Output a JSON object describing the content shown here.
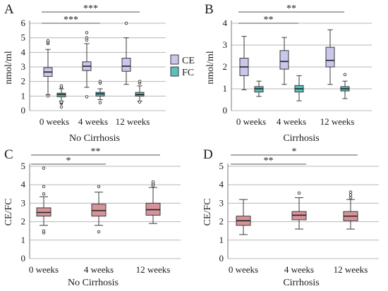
{
  "colors": {
    "ce": "#c9c7ec",
    "fc": "#58c1bd",
    "ratio": "#d6949a",
    "box_stroke": "#3a3a3a",
    "grid": "#b7b7b7",
    "axis": "#7a7a7a",
    "sig_line": "#555555"
  },
  "legend": {
    "ce_label": "CE",
    "fc_label": "FC"
  },
  "chart_data": [
    {
      "panel": "A",
      "type": "box",
      "xlabel": "No Cirrhosis",
      "ylabel": "nmol/ml",
      "ylim": [
        0,
        6
      ],
      "yticks": [
        0,
        1,
        2,
        3,
        4,
        5,
        6
      ],
      "categories": [
        "0 weeks",
        "4 weeks",
        "12 weeks"
      ],
      "series": [
        {
          "name": "CE",
          "color": "ce",
          "boxes": [
            {
              "min": 1.1,
              "q1": 2.35,
              "median": 2.65,
              "q3": 2.95,
              "max": 4.2,
              "outliers": [
                1.0,
                4.6,
                4.7,
                4.8
              ]
            },
            {
              "min": 1.6,
              "q1": 2.75,
              "median": 3.05,
              "q3": 3.35,
              "max": 4.6,
              "outliers": [
                0.95,
                4.85,
                5.0,
                5.35
              ]
            },
            {
              "min": 1.8,
              "q1": 2.7,
              "median": 3.05,
              "q3": 3.6,
              "max": 5.0,
              "outliers": [
                6.0
              ]
            }
          ]
        },
        {
          "name": "FC",
          "color": "fc",
          "boxes": [
            {
              "min": 0.65,
              "q1": 0.95,
              "median": 1.1,
              "q3": 1.2,
              "max": 1.5,
              "outliers": [
                0.25,
                0.5,
                0.55,
                0.6,
                1.6,
                1.7
              ]
            },
            {
              "min": 0.75,
              "q1": 1.0,
              "median": 1.15,
              "q3": 1.25,
              "max": 1.5,
              "outliers": [
                0.55,
                1.9,
                2.0
              ]
            },
            {
              "min": 0.65,
              "q1": 1.0,
              "median": 1.1,
              "q3": 1.25,
              "max": 1.7,
              "outliers": [
                0.6,
                1.9,
                2.0
              ]
            }
          ]
        }
      ],
      "significance": [
        {
          "from": 0,
          "to": 1,
          "label": "***"
        },
        {
          "from": 0,
          "to": 2,
          "label": "***"
        }
      ]
    },
    {
      "panel": "B",
      "type": "box",
      "xlabel": "Cirrhosis",
      "ylabel": "nmol/ml",
      "ylim": [
        0,
        4
      ],
      "yticks": [
        0,
        1,
        2,
        3,
        4
      ],
      "categories": [
        "0 weeks",
        "4 weeks",
        "12 weeks"
      ],
      "series": [
        {
          "name": "CE",
          "color": "ce",
          "boxes": [
            {
              "min": 0.95,
              "q1": 1.6,
              "median": 2.0,
              "q3": 2.4,
              "max": 3.4,
              "outliers": []
            },
            {
              "min": 1.2,
              "q1": 1.9,
              "median": 2.25,
              "q3": 2.75,
              "max": 3.35,
              "outliers": []
            },
            {
              "min": 1.2,
              "q1": 2.0,
              "median": 2.3,
              "q3": 2.9,
              "max": 3.7,
              "outliers": []
            }
          ]
        },
        {
          "name": "FC",
          "color": "fc",
          "boxes": [
            {
              "min": 0.65,
              "q1": 0.85,
              "median": 1.0,
              "q3": 1.1,
              "max": 1.35,
              "outliers": []
            },
            {
              "min": 0.45,
              "q1": 0.85,
              "median": 1.0,
              "q3": 1.15,
              "max": 1.6,
              "outliers": []
            },
            {
              "min": 0.55,
              "q1": 0.9,
              "median": 1.0,
              "q3": 1.1,
              "max": 1.35,
              "outliers": [
                1.65
              ]
            }
          ]
        }
      ],
      "significance": [
        {
          "from": 0,
          "to": 1,
          "label": "**"
        },
        {
          "from": 0,
          "to": 2,
          "label": "**"
        }
      ]
    },
    {
      "panel": "C",
      "type": "box",
      "xlabel": "No Cirrhosis",
      "ylabel": "CE/FC",
      "ylim": [
        0,
        5
      ],
      "yticks": [
        0,
        1,
        2,
        3,
        4,
        5
      ],
      "categories": [
        "0 weeks",
        "4 weeks",
        "12 weeks"
      ],
      "series": [
        {
          "name": "CE/FC",
          "color": "ratio",
          "boxes": [
            {
              "min": 1.8,
              "q1": 2.3,
              "median": 2.5,
              "q3": 2.75,
              "max": 3.35,
              "outliers": [
                1.4,
                1.5,
                3.5,
                3.9,
                4.9
              ]
            },
            {
              "min": 1.8,
              "q1": 2.3,
              "median": 2.6,
              "q3": 2.95,
              "max": 3.6,
              "outliers": [
                1.45,
                3.9
              ]
            },
            {
              "min": 1.9,
              "q1": 2.35,
              "median": 2.65,
              "q3": 3.0,
              "max": 3.85,
              "outliers": [
                3.95,
                4.05,
                4.15
              ]
            }
          ]
        }
      ],
      "significance": [
        {
          "from": 0,
          "to": 1,
          "label": "*"
        },
        {
          "from": 0,
          "to": 2,
          "label": "**"
        }
      ]
    },
    {
      "panel": "D",
      "type": "box",
      "xlabel": "Cirrhosis",
      "ylabel": "CE/FC",
      "ylim": [
        0,
        5
      ],
      "yticks": [
        0,
        1,
        2,
        3,
        4,
        5
      ],
      "categories": [
        "0 weeks",
        "4 weeks",
        "12 weeks"
      ],
      "series": [
        {
          "name": "CE/FC",
          "color": "ratio",
          "boxes": [
            {
              "min": 1.3,
              "q1": 1.8,
              "median": 2.05,
              "q3": 2.3,
              "max": 3.2,
              "outliers": []
            },
            {
              "min": 1.6,
              "q1": 2.1,
              "median": 2.35,
              "q3": 2.55,
              "max": 3.3,
              "outliers": [
                3.55
              ]
            },
            {
              "min": 1.6,
              "q1": 2.05,
              "median": 2.3,
              "q3": 2.55,
              "max": 3.2,
              "outliers": [
                3.3,
                3.45,
                3.6
              ]
            }
          ]
        }
      ],
      "significance": [
        {
          "from": 0,
          "to": 1,
          "label": "**"
        },
        {
          "from": 0,
          "to": 2,
          "label": "*"
        }
      ]
    }
  ]
}
